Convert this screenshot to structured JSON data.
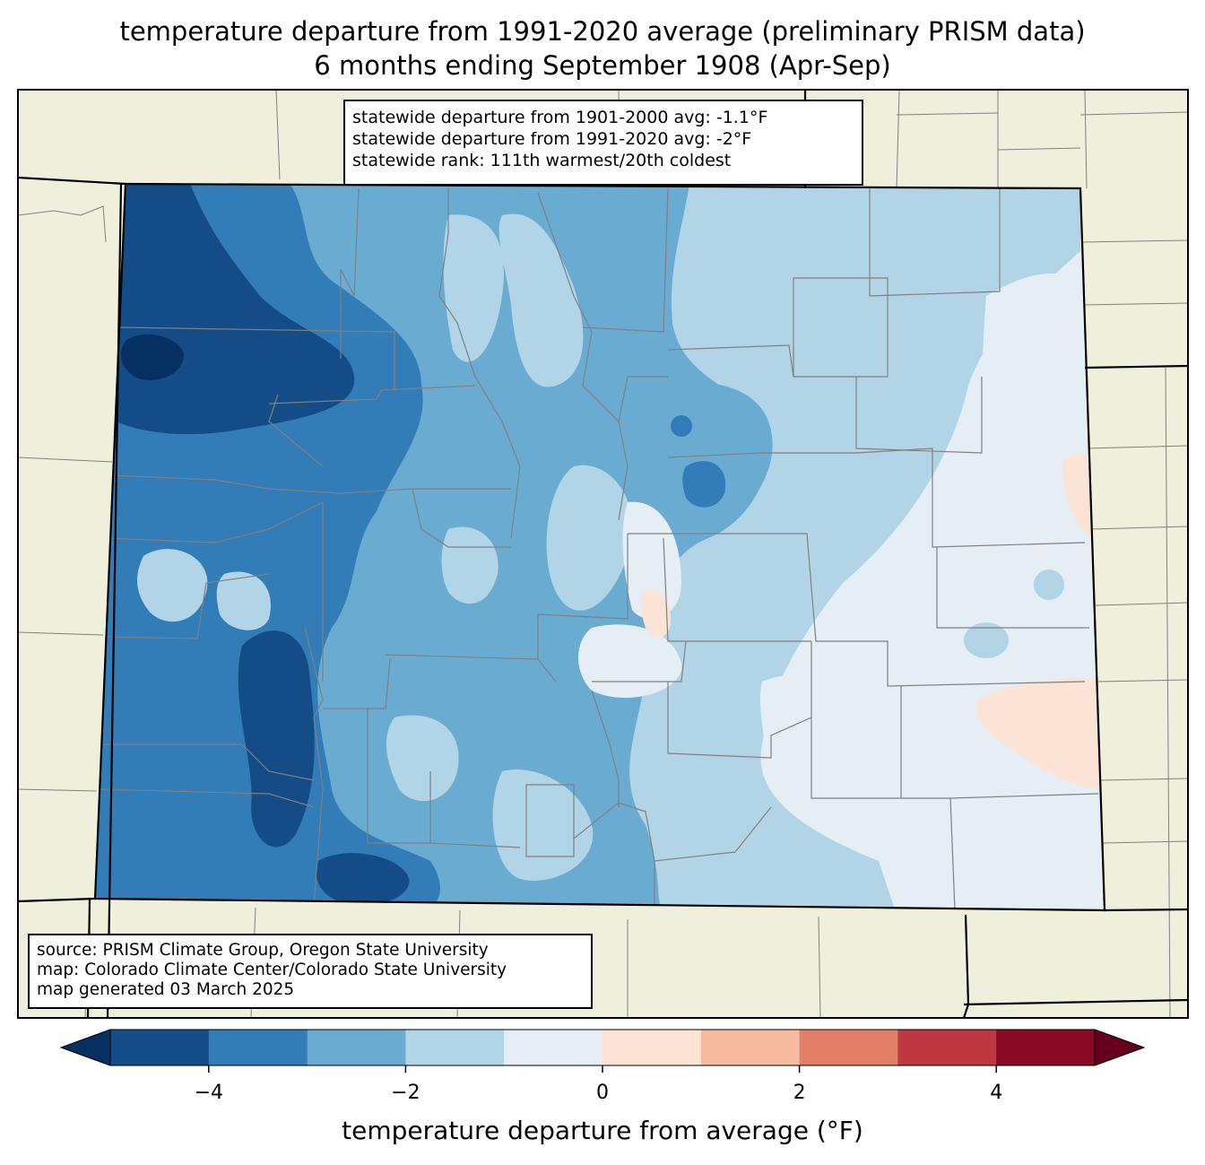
{
  "title_line1": "temperature departure from 1991-2020 average (preliminary PRISM data)",
  "title_line2": "6 months ending September 1908 (Apr-Sep)",
  "stats": {
    "line1": "statewide departure from 1901-2000 avg: -1.1°F",
    "line2": "statewide departure from 1991-2020 avg: -2°F",
    "line3": "statewide rank: 111th warmest/20th coldest"
  },
  "source": {
    "line1": "source: PRISM Climate Group, Oregon State University",
    "line2": "map: Colorado Climate Center/Colorado State University",
    "line3": "map generated 03 March 2025"
  },
  "colorbar": {
    "label": "temperature departure from average (°F)",
    "min": -5,
    "max": 5,
    "ticks": [
      "−4",
      "−2",
      "0",
      "2",
      "4"
    ],
    "tick_values": [
      -4,
      -2,
      0,
      2,
      4
    ],
    "under_color": "#053061",
    "over_color": "#67001f",
    "colors": [
      "#134c87",
      "#327cb7",
      "#6aabd1",
      "#b1d5e7",
      "#e5eef4",
      "#fbe3d6",
      "#f8bba0",
      "#e27f67",
      "#c0383f",
      "#880a25"
    ]
  },
  "map_colors": {
    "background": "#efefdc",
    "county_lines": "#808080",
    "state_lines": "#000000"
  }
}
